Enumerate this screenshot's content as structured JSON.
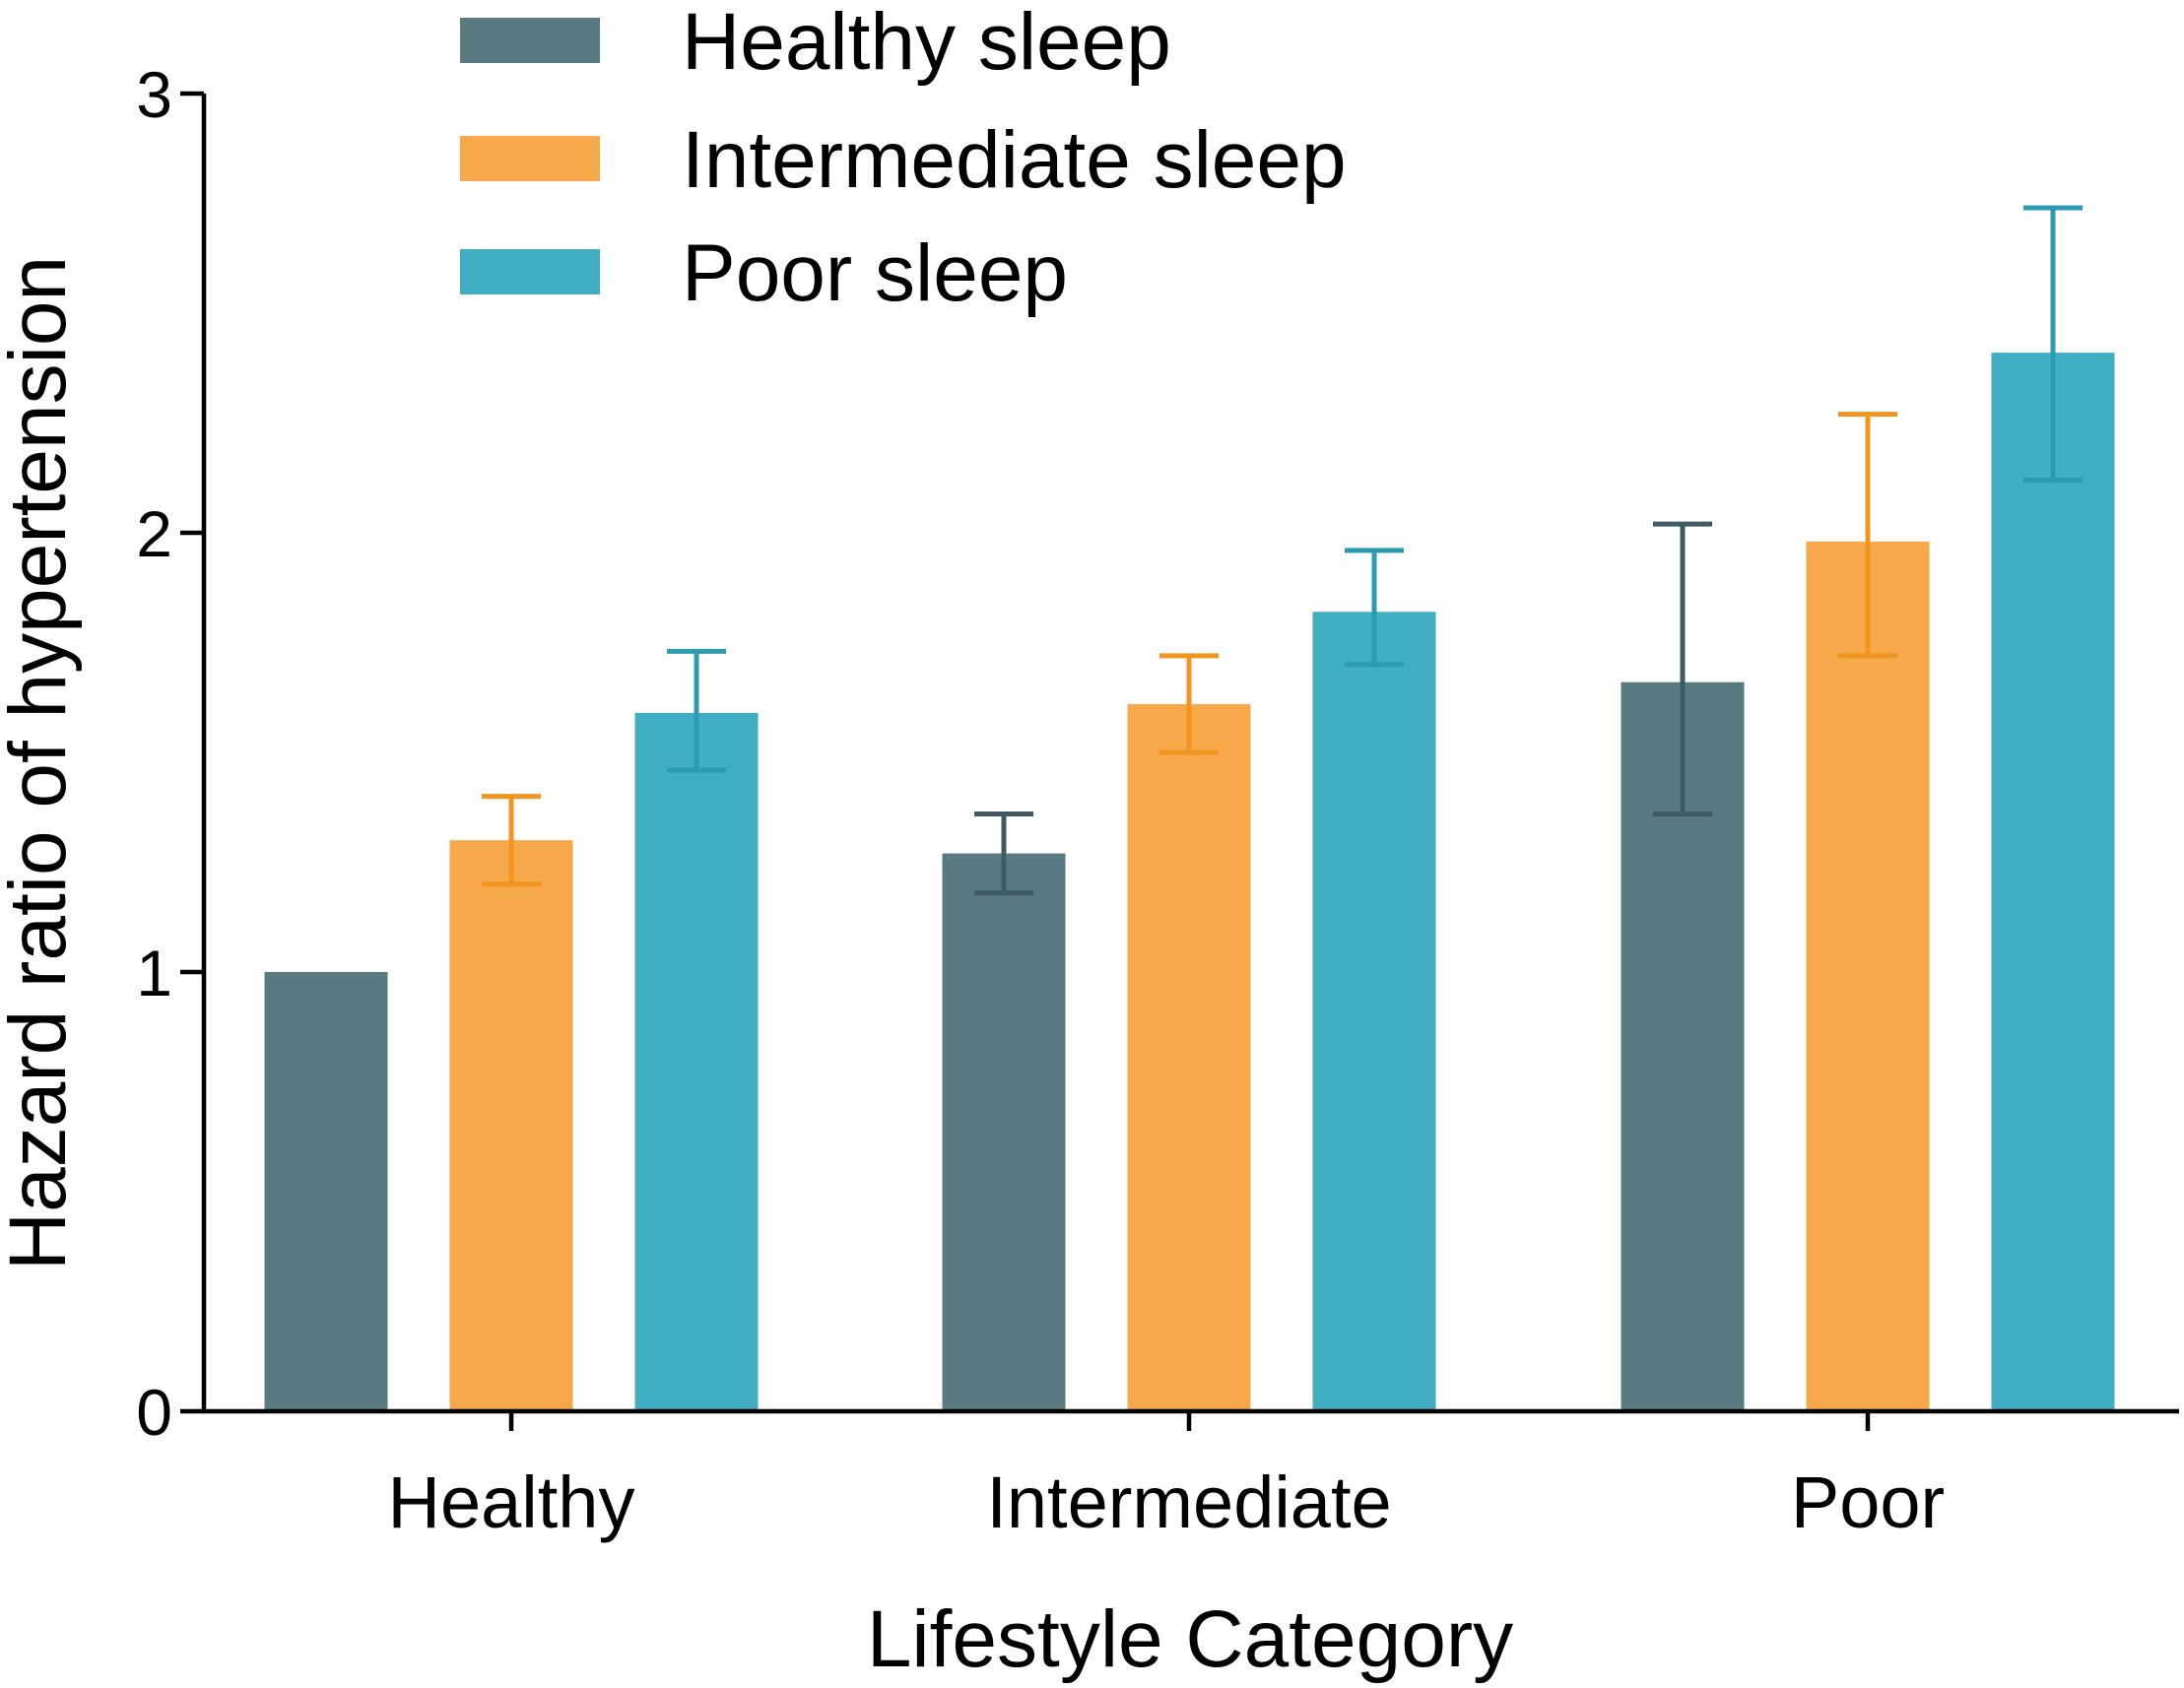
{
  "chart_data": {
    "type": "bar",
    "title": "",
    "xlabel": "Lifestyle Category",
    "ylabel": "Hazard ratio of hypertension",
    "ylim": [
      0,
      3
    ],
    "yticks": [
      "0",
      "1",
      "2",
      "3"
    ],
    "categories": [
      "Healthy",
      "Intermediate",
      "Poor"
    ],
    "legend_position": "top-left",
    "grid": false,
    "series": [
      {
        "name": "Healthy sleep",
        "color": "#5a7a82",
        "error_color": "#3f5a62",
        "values": [
          1.0,
          1.27,
          1.66
        ],
        "err_low": [
          null,
          1.18,
          1.36
        ],
        "err_high": [
          null,
          1.36,
          2.02
        ]
      },
      {
        "name": "Intermediate sleep",
        "color": "#f6a84b",
        "error_color": "#f0961f",
        "values": [
          1.3,
          1.61,
          1.98
        ],
        "err_low": [
          1.2,
          1.5,
          1.72
        ],
        "err_high": [
          1.4,
          1.72,
          2.27
        ]
      },
      {
        "name": "Poor sleep",
        "color": "#41adc2",
        "error_color": "#2b9bb2",
        "values": [
          1.59,
          1.82,
          2.41
        ],
        "err_low": [
          1.46,
          1.7,
          2.12
        ],
        "err_high": [
          1.73,
          1.96,
          2.74
        ]
      }
    ]
  }
}
